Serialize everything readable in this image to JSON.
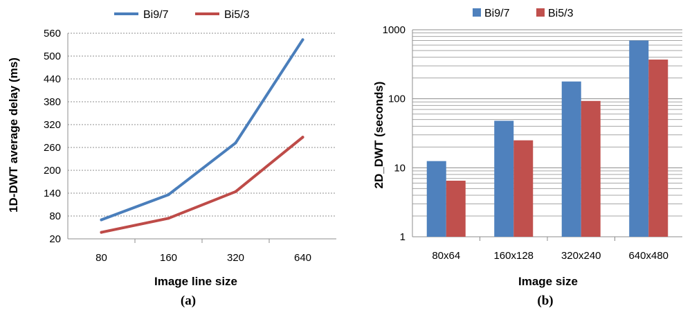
{
  "chart_data": [
    {
      "type": "line",
      "panel_label": "(a)",
      "xlabel": "Image line size",
      "ylabel": "1D-DWT average delay (ms)",
      "categories": [
        "80",
        "160",
        "320",
        "640"
      ],
      "ylim": [
        20,
        560
      ],
      "yticks": [
        "20",
        "80",
        "140",
        "200",
        "260",
        "320",
        "380",
        "440",
        "500",
        "560"
      ],
      "grid": true,
      "legend_position": "top",
      "series": [
        {
          "name": "Bi9/7",
          "color": "#4a7ebb",
          "values": [
            70,
            136,
            272,
            543
          ]
        },
        {
          "name": "Bi5/3",
          "color": "#be4b48",
          "values": [
            37,
            74,
            144,
            287
          ]
        }
      ]
    },
    {
      "type": "bar",
      "panel_label": "(b)",
      "xlabel": "Image size",
      "ylabel": "2D_DWT (seconds)",
      "categories": [
        "80x64",
        "160x128",
        "320x240",
        "640x480"
      ],
      "scale": "log",
      "ylim": [
        1,
        1000
      ],
      "yticks": [
        "1",
        "10",
        "100",
        "1000"
      ],
      "grid": true,
      "legend_position": "top",
      "series": [
        {
          "name": "Bi9/7",
          "color": "#4f81bd",
          "values": [
            12.5,
            48,
            178,
            700
          ]
        },
        {
          "name": "Bi5/3",
          "color": "#c0504d",
          "values": [
            6.5,
            25,
            93,
            370
          ]
        }
      ]
    }
  ]
}
